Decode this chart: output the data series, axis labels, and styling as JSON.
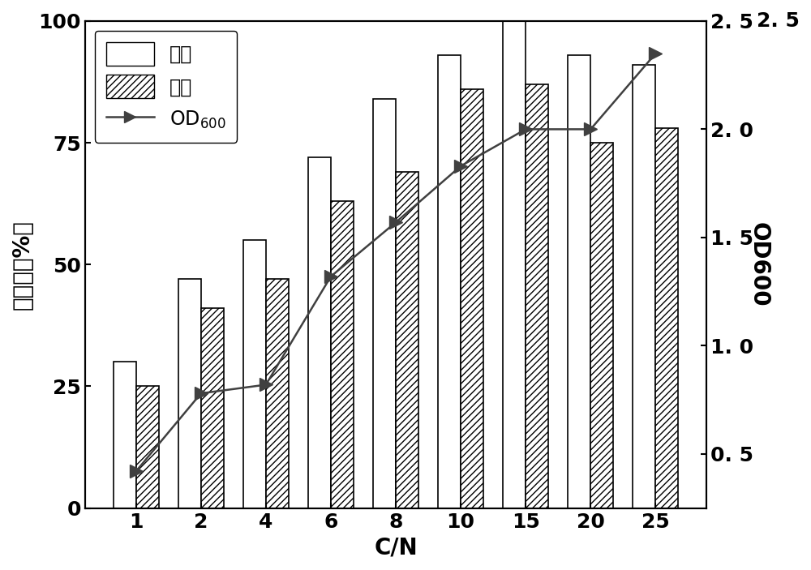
{
  "cn_values": [
    1,
    2,
    4,
    6,
    8,
    10,
    15,
    20,
    25
  ],
  "ammonia_removal": [
    30,
    47,
    55,
    72,
    84,
    93,
    100,
    93,
    91
  ],
  "total_nitrogen_removal": [
    25,
    41,
    47,
    63,
    69,
    86,
    87,
    75,
    78
  ],
  "od600": [
    0.42,
    0.78,
    0.82,
    1.32,
    1.57,
    1.83,
    2.0,
    2.0,
    2.35
  ],
  "ylabel_left": "去除率（%）",
  "ylabel_right": "OD600",
  "xlabel": "C/N",
  "legend_ammonia": "氨氮",
  "legend_total_n": "总氮",
  "ylim_left": [
    0,
    100
  ],
  "ylim_right": [
    0.25,
    2.5
  ],
  "yticks_left": [
    0,
    25,
    50,
    75,
    100
  ],
  "yticks_right": [
    0.5,
    1.0,
    1.5,
    2.0,
    2.5
  ],
  "bar_width": 0.35,
  "hatch_pattern": "////",
  "bar_color": "white",
  "bar_edgecolor": "black",
  "line_color": "#404040",
  "marker_color": "#404040",
  "background_color": "white",
  "fontsize_label": 20,
  "fontsize_tick": 18,
  "fontsize_legend": 17,
  "figwidth": 10.0,
  "figheight": 7.03
}
